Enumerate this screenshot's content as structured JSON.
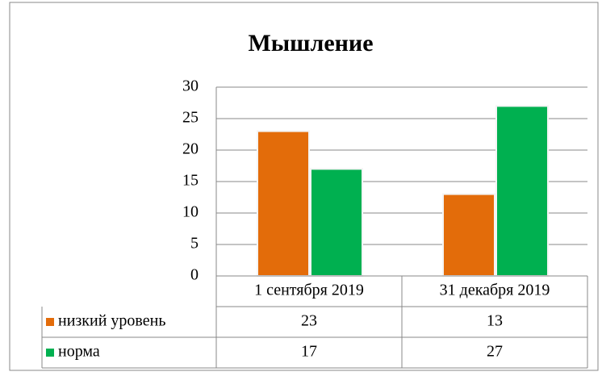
{
  "chart_data": {
    "type": "bar",
    "title": "Мышление",
    "categories": [
      "1 сентября 2019",
      "31 декабря 2019"
    ],
    "series": [
      {
        "name": "низкий уровень",
        "color": "#e36c0a",
        "values": [
          23,
          13
        ]
      },
      {
        "name": "норма",
        "color": "#00b050",
        "values": [
          17,
          27
        ]
      }
    ],
    "ylim": [
      0,
      30
    ],
    "yticks": [
      0,
      5,
      10,
      15,
      20,
      25,
      30
    ],
    "grid": true,
    "data_table": true
  }
}
